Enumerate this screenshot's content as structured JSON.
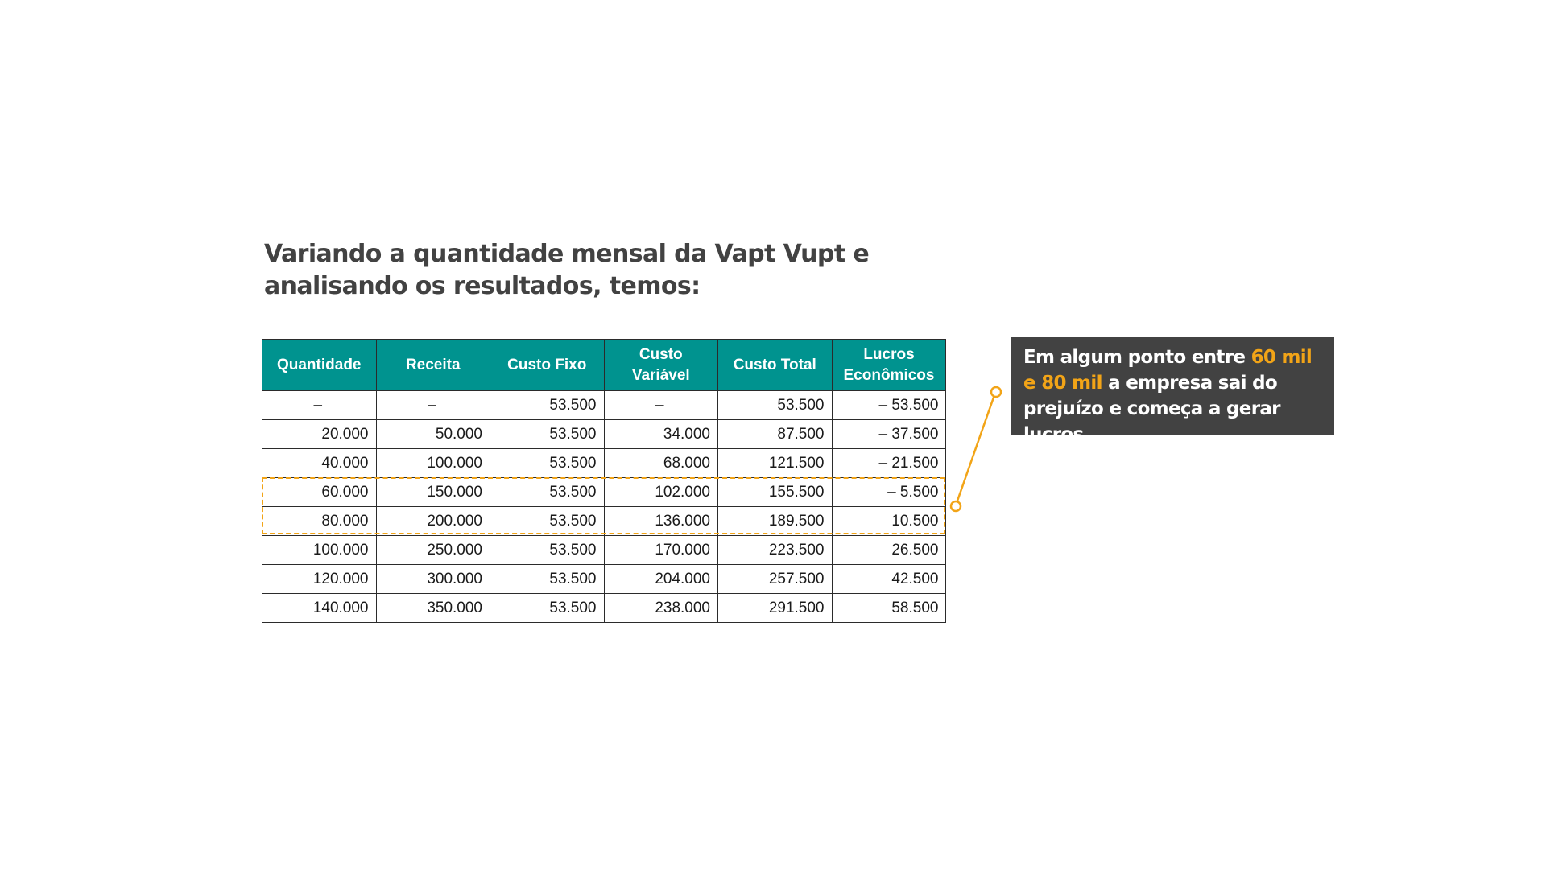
{
  "title": "Variando a quantidade mensal da Vapt Vupt e analisando os resultados, temos:",
  "table": {
    "headers": [
      "Quantidade",
      "Receita",
      "Custo Fixo",
      "Custo Variável",
      "Custo Total",
      "Lucros Econômicos"
    ],
    "rows": [
      [
        "–",
        "–",
        "53.500",
        "–",
        "53.500",
        "– 53.500"
      ],
      [
        "20.000",
        "50.000",
        "53.500",
        "34.000",
        "87.500",
        "– 37.500"
      ],
      [
        "40.000",
        "100.000",
        "53.500",
        "68.000",
        "121.500",
        "– 21.500"
      ],
      [
        "60.000",
        "150.000",
        "53.500",
        "102.000",
        "155.500",
        "– 5.500"
      ],
      [
        "80.000",
        "200.000",
        "53.500",
        "136.000",
        "189.500",
        "10.500"
      ],
      [
        "100.000",
        "250.000",
        "53.500",
        "170.000",
        "223.500",
        "26.500"
      ],
      [
        "120.000",
        "300.000",
        "53.500",
        "204.000",
        "257.500",
        "42.500"
      ],
      [
        "140.000",
        "350.000",
        "53.500",
        "238.000",
        "291.500",
        "58.500"
      ]
    ],
    "highlighted_rows": [
      3,
      4
    ]
  },
  "callout": {
    "prefix": "Em algum ponto entre ",
    "highlight": "60 mil e 80 mil",
    "suffix": " a empresa sai do prejuízo e começa a gerar lucros"
  },
  "colors": {
    "header_bg": "#00938f",
    "accent": "#f2a417",
    "callout_bg": "#424242",
    "text": "#424242"
  }
}
